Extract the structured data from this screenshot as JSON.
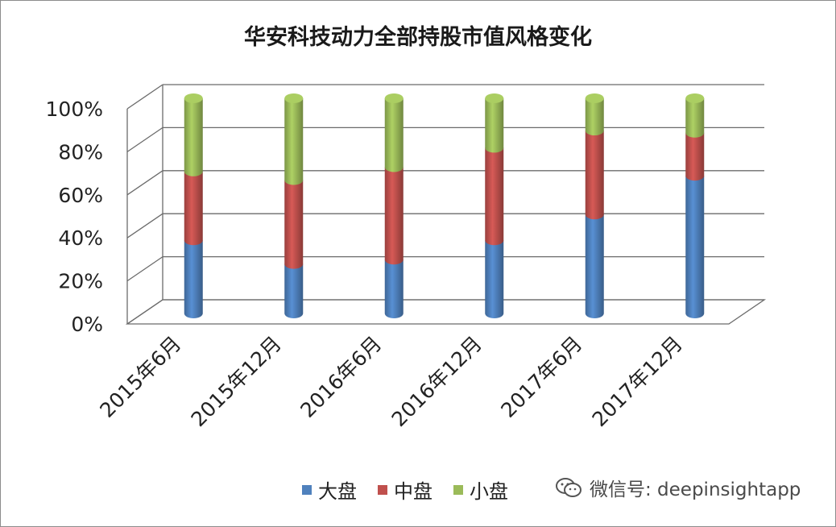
{
  "chart_data": {
    "type": "bar",
    "stacked": true,
    "percent_stacked": true,
    "three_d": true,
    "title": "华安科技动力全部持股市值风格变化",
    "categories": [
      "2015年6月",
      "2015年12月",
      "2016年6月",
      "2016年12月",
      "2017年6月",
      "2017年12月"
    ],
    "series": [
      {
        "name": "大盘",
        "color": "#4f81bd",
        "values": [
          34,
          23,
          25,
          34,
          46,
          64
        ]
      },
      {
        "name": "中盘",
        "color": "#c0504d",
        "values": [
          32,
          39,
          43,
          43,
          39,
          20
        ]
      },
      {
        "name": "小盘",
        "color": "#9bbb59",
        "values": [
          34,
          38,
          32,
          23,
          15,
          16
        ]
      }
    ],
    "yticks": [
      "0%",
      "20%",
      "40%",
      "60%",
      "80%",
      "100%"
    ],
    "ylim": [
      0,
      100
    ],
    "grid": true,
    "legend_position": "bottom"
  },
  "watermark": {
    "text": "微信号: deepinsightapp",
    "icon": "wechat-icon"
  }
}
